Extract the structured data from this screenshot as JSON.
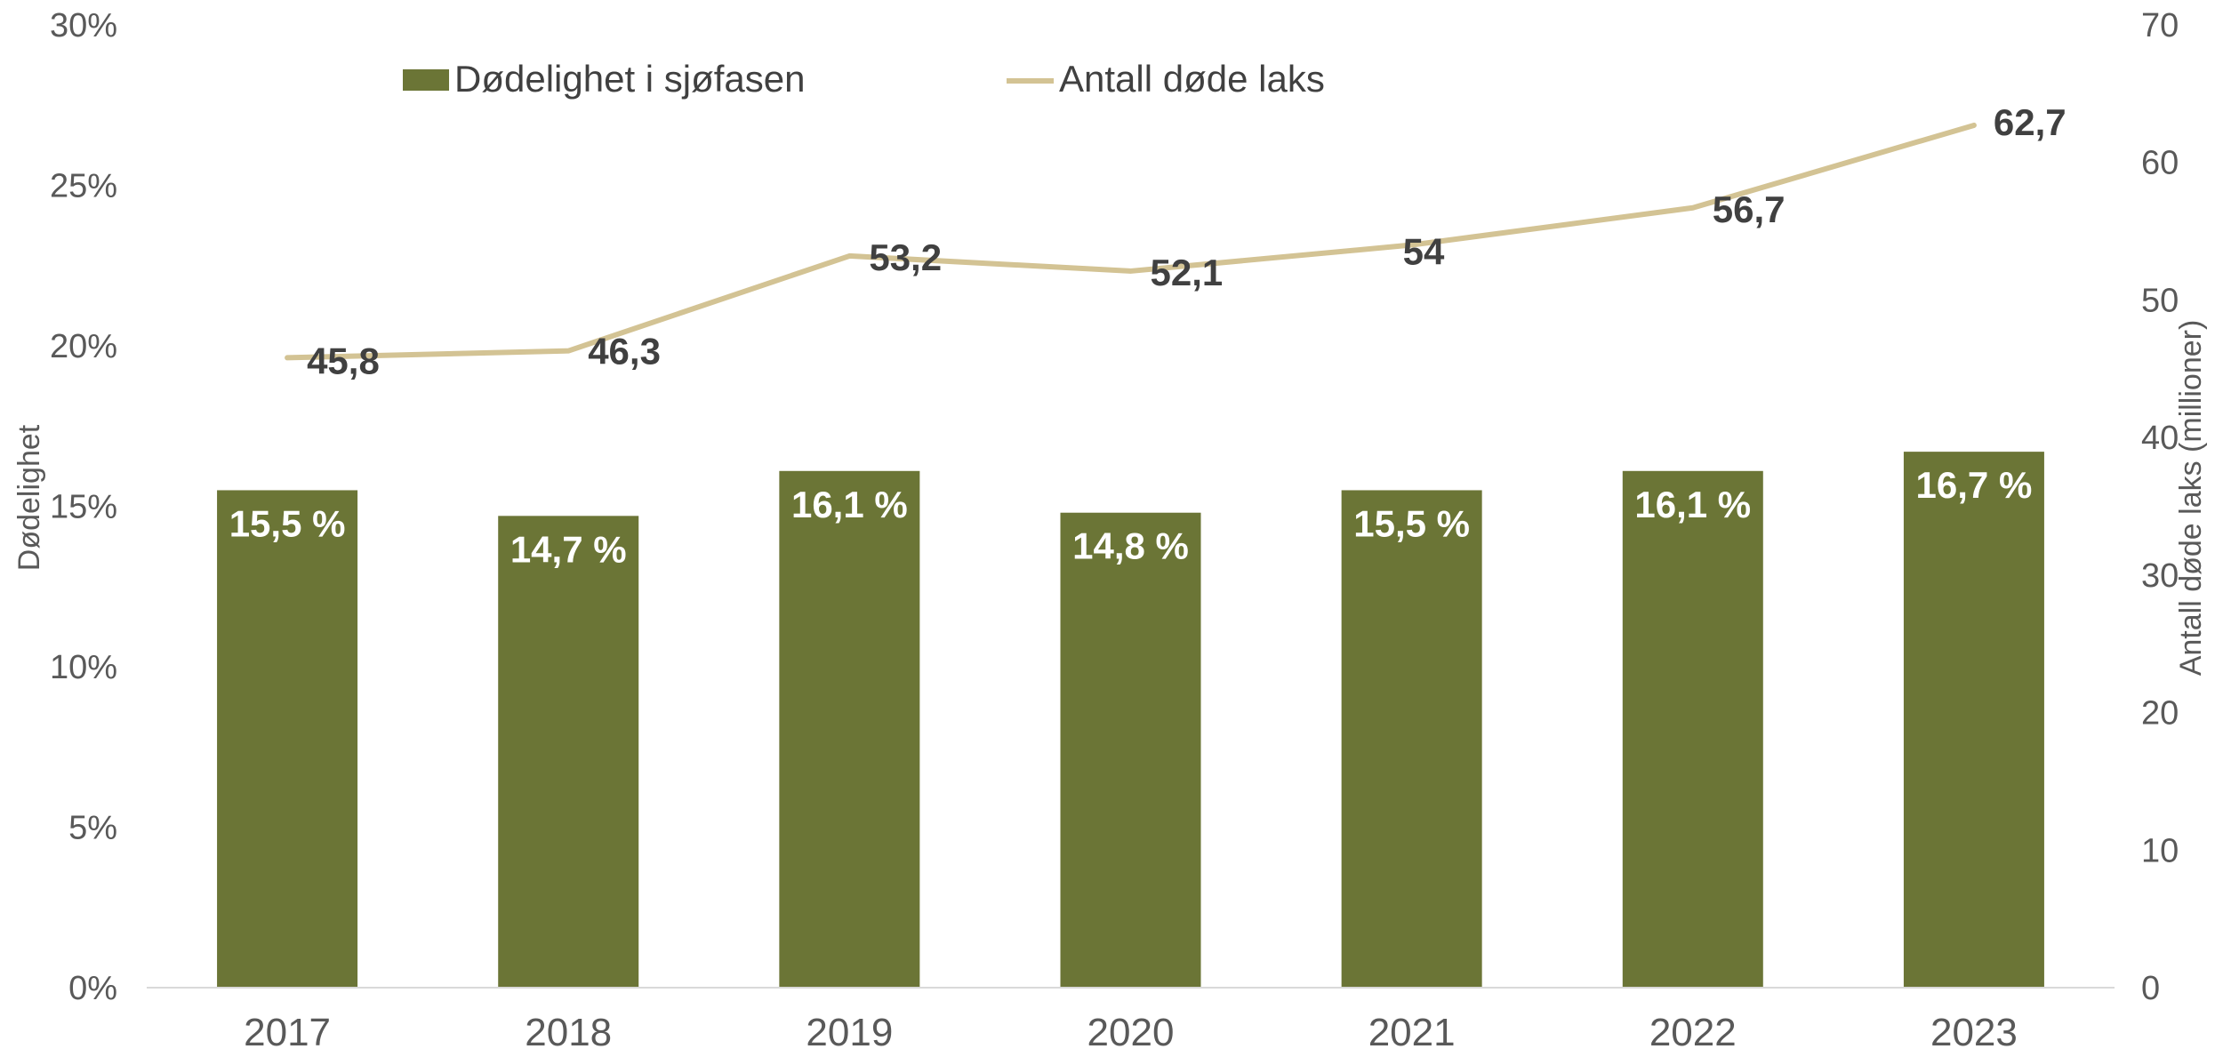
{
  "chart_data": {
    "type": "bar",
    "categories": [
      "2017",
      "2018",
      "2019",
      "2020",
      "2021",
      "2022",
      "2023"
    ],
    "series": [
      {
        "name": "Dødelighet i sjøfasen",
        "type": "bar",
        "axis": "left",
        "values": [
          15.5,
          14.7,
          16.1,
          14.8,
          15.5,
          16.1,
          16.7
        ],
        "labels": [
          "15,5 %",
          "14,7 %",
          "16,1 %",
          "14,8 %",
          "15,5 %",
          "16,1 %",
          "16,7 %"
        ],
        "color": "#6b7536"
      },
      {
        "name": "Antall døde laks",
        "type": "line",
        "axis": "right",
        "values": [
          45.8,
          46.3,
          53.2,
          52.1,
          54,
          56.7,
          62.7
        ],
        "labels": [
          "45,8",
          "46,3",
          "53,2",
          "52,1",
          "54",
          "56,7",
          "62,7"
        ],
        "color": "#d3c394"
      }
    ],
    "ylabel_left": "Dødelighet",
    "ylabel_right": "Antall døde laks (millioner)",
    "ylim_left": [
      0,
      30
    ],
    "ylim_right": [
      0,
      70
    ],
    "yticks_left": [
      "0%",
      "5%",
      "10%",
      "15%",
      "20%",
      "25%",
      "30%"
    ],
    "yticks_right": [
      "0",
      "10",
      "20",
      "30",
      "40",
      "50",
      "60",
      "70"
    ],
    "legend": "top-left",
    "grid": false
  }
}
